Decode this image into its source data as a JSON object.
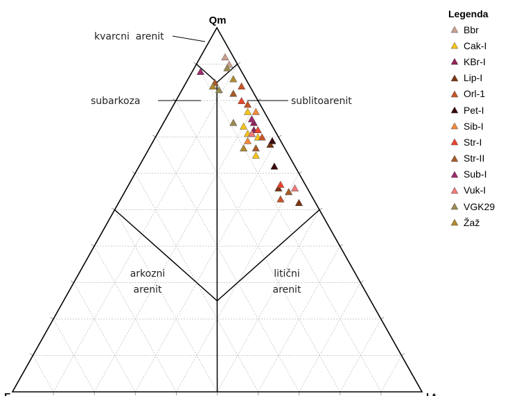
{
  "chart_data": {
    "type": "scatter",
    "subtype": "ternary",
    "apex_labels": {
      "top": "Qm",
      "left": "F",
      "right": "Lt"
    },
    "field_labels": [
      {
        "id": "kvarcni-arenit",
        "lines": [
          "kvarcni  arenit"
        ]
      },
      {
        "id": "subarkoza",
        "lines": [
          "subarkoza"
        ]
      },
      {
        "id": "sublitoarenit",
        "lines": [
          "sublitoarenit"
        ]
      },
      {
        "id": "arkozni-arenit",
        "lines": [
          "arkozni",
          "arenit"
        ]
      },
      {
        "id": "liticni-arenit",
        "lines": [
          "litični",
          "arenit"
        ]
      }
    ],
    "grid": true,
    "grid_step_percent": 10,
    "legend": {
      "title": "Legenda",
      "position": "top-right"
    },
    "series": [
      {
        "name": "Bbr",
        "color": "#c9a08f",
        "points": [
          {
            "Qm": 92,
            "F": 2,
            "Lt": 6
          },
          {
            "Qm": 90,
            "F": 2,
            "Lt": 8
          }
        ]
      },
      {
        "name": "Cak-I",
        "color": "#f6c21a",
        "points": [
          {
            "Qm": 77,
            "F": 4,
            "Lt": 19
          },
          {
            "Qm": 73,
            "F": 7,
            "Lt": 20
          },
          {
            "Qm": 71,
            "F": 7,
            "Lt": 22
          },
          {
            "Qm": 65,
            "F": 8,
            "Lt": 27
          },
          {
            "Qm": 70,
            "F": 5,
            "Lt": 25
          }
        ]
      },
      {
        "name": "KBr-I",
        "color": "#8e2457",
        "points": [
          {
            "Qm": 74,
            "F": 4,
            "Lt": 22
          },
          {
            "Qm": 72,
            "F": 5,
            "Lt": 23
          }
        ]
      },
      {
        "name": "Lip-I",
        "color": "#7a3512",
        "points": [
          {
            "Qm": 68,
            "F": 3,
            "Lt": 29
          },
          {
            "Qm": 56,
            "F": 7,
            "Lt": 37
          },
          {
            "Qm": 52,
            "F": 4,
            "Lt": 44
          }
        ]
      },
      {
        "name": "Orl-1",
        "color": "#c95427",
        "points": [
          {
            "Qm": 84,
            "F": 2,
            "Lt": 14
          },
          {
            "Qm": 79,
            "F": 3,
            "Lt": 18
          },
          {
            "Qm": 70,
            "F": 4,
            "Lt": 26
          },
          {
            "Qm": 53,
            "F": 8,
            "Lt": 39
          }
        ]
      },
      {
        "name": "Pet-I",
        "color": "#3a0a0a",
        "points": [
          {
            "Qm": 69,
            "F": 2,
            "Lt": 29
          },
          {
            "Qm": 62,
            "F": 5,
            "Lt": 33
          }
        ]
      },
      {
        "name": "Sib-I",
        "color": "#f08a3c",
        "points": [
          {
            "Qm": 77,
            "F": 2,
            "Lt": 21
          },
          {
            "Qm": 71,
            "F": 6,
            "Lt": 23
          },
          {
            "Qm": 69,
            "F": 8,
            "Lt": 23
          }
        ]
      },
      {
        "name": "Str-I",
        "color": "#e8442c",
        "points": [
          {
            "Qm": 80,
            "F": 4,
            "Lt": 16
          },
          {
            "Qm": 72,
            "F": 4,
            "Lt": 24
          },
          {
            "Qm": 57,
            "F": 6,
            "Lt": 37
          }
        ]
      },
      {
        "name": "Str-II",
        "color": "#a65a28",
        "points": [
          {
            "Qm": 85,
            "F": 8,
            "Lt": 7
          },
          {
            "Qm": 82,
            "F": 5,
            "Lt": 13
          },
          {
            "Qm": 67,
            "F": 7,
            "Lt": 26
          },
          {
            "Qm": 55,
            "F": 5,
            "Lt": 40
          }
        ]
      },
      {
        "name": "Sub-I",
        "color": "#9b2a6c",
        "points": [
          {
            "Qm": 88,
            "F": 10,
            "Lt": 2
          },
          {
            "Qm": 75,
            "F": 4,
            "Lt": 21
          }
        ]
      },
      {
        "name": "Vuk-I",
        "color": "#f07a78",
        "points": [
          {
            "Qm": 71,
            "F": 6,
            "Lt": 23
          },
          {
            "Qm": 56,
            "F": 3,
            "Lt": 41
          }
        ]
      },
      {
        "name": "VGK29",
        "color": "#9a8a50",
        "points": [
          {
            "Qm": 89,
            "F": 3,
            "Lt": 8
          },
          {
            "Qm": 83,
            "F": 8,
            "Lt": 9
          },
          {
            "Qm": 74,
            "F": 9,
            "Lt": 17
          }
        ]
      },
      {
        "name": "Žaž",
        "color": "#b08a30",
        "points": [
          {
            "Qm": 86,
            "F": 3,
            "Lt": 11
          },
          {
            "Qm": 84,
            "F": 9,
            "Lt": 7
          },
          {
            "Qm": 67,
            "F": 10,
            "Lt": 23
          }
        ]
      }
    ]
  }
}
